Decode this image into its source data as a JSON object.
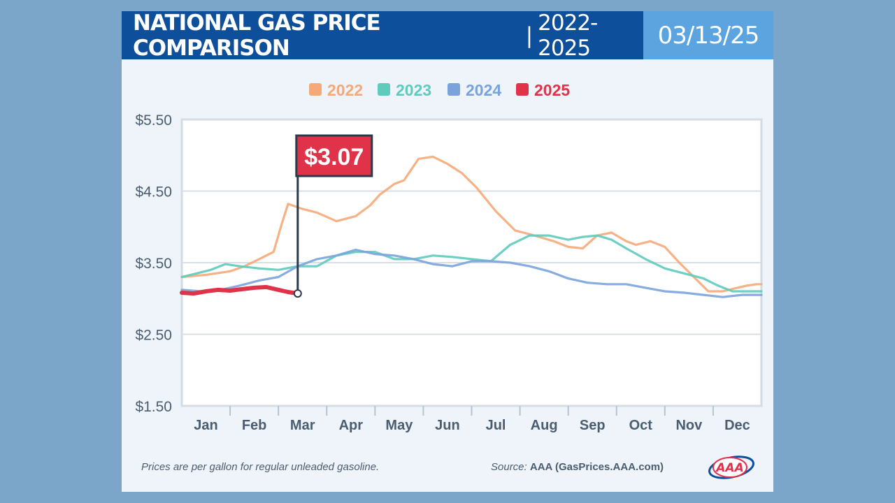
{
  "header": {
    "title": "NATIONAL GAS PRICE COMPARISON",
    "separator": "|",
    "years": "2022-2025",
    "date": "03/13/25"
  },
  "footer": {
    "note": "Prices are per gallon for regular unleaded gasoline.",
    "source_label": "Source:",
    "source_value": "AAA (GasPrices.AAA.com)",
    "logo_text": "AAA"
  },
  "colors": {
    "2022": "#f5a878",
    "2023": "#5ecbbd",
    "2024": "#7aa3dc",
    "2025": "#e0334a"
  },
  "chart_data": {
    "type": "line",
    "title": "NATIONAL GAS PRICE COMPARISON | 2022-2025",
    "xlabel": "",
    "ylabel": "",
    "ylim": [
      1.5,
      5.5
    ],
    "yticks": [
      "$5.50",
      "$4.50",
      "$3.50",
      "$2.50",
      "$1.50"
    ],
    "ytick_values": [
      5.5,
      4.5,
      3.5,
      2.5,
      1.5
    ],
    "xlim": [
      0,
      12
    ],
    "categories": [
      "Jan",
      "Feb",
      "Mar",
      "Apr",
      "May",
      "Jun",
      "Jul",
      "Aug",
      "Sep",
      "Oct",
      "Nov",
      "Dec"
    ],
    "legend_position": "top-center",
    "annotation": {
      "label": "$3.07",
      "series": "2025",
      "x": 2.4,
      "y": 3.07
    },
    "series": [
      {
        "name": "2022",
        "x": [
          0,
          0.5,
          1.0,
          1.3,
          1.6,
          1.9,
          2.05,
          2.2,
          2.5,
          2.8,
          3.2,
          3.6,
          3.9,
          4.1,
          4.4,
          4.6,
          4.9,
          5.2,
          5.5,
          5.8,
          6.1,
          6.5,
          6.9,
          7.3,
          7.7,
          8.0,
          8.3,
          8.6,
          8.9,
          9.2,
          9.4,
          9.7,
          10.0,
          10.3,
          10.6,
          10.9,
          11.2,
          11.5,
          11.7,
          11.9,
          12.0
        ],
        "values": [
          3.3,
          3.33,
          3.38,
          3.45,
          3.55,
          3.65,
          4.0,
          4.32,
          4.25,
          4.2,
          4.08,
          4.15,
          4.3,
          4.45,
          4.6,
          4.65,
          4.95,
          4.98,
          4.88,
          4.75,
          4.55,
          4.22,
          3.95,
          3.88,
          3.8,
          3.72,
          3.7,
          3.88,
          3.92,
          3.8,
          3.75,
          3.8,
          3.72,
          3.5,
          3.3,
          3.1,
          3.1,
          3.15,
          3.18,
          3.2,
          3.2
        ]
      },
      {
        "name": "2023",
        "x": [
          0,
          0.3,
          0.6,
          0.9,
          1.2,
          1.6,
          2.0,
          2.4,
          2.8,
          3.2,
          3.6,
          4.0,
          4.4,
          4.8,
          5.2,
          5.6,
          6.0,
          6.4,
          6.8,
          7.2,
          7.6,
          8.0,
          8.3,
          8.6,
          8.9,
          9.2,
          9.6,
          10.0,
          10.4,
          10.8,
          11.1,
          11.4,
          11.7,
          12.0
        ],
        "values": [
          3.3,
          3.35,
          3.4,
          3.48,
          3.45,
          3.42,
          3.4,
          3.45,
          3.45,
          3.6,
          3.65,
          3.65,
          3.55,
          3.55,
          3.6,
          3.58,
          3.55,
          3.52,
          3.75,
          3.88,
          3.88,
          3.82,
          3.86,
          3.88,
          3.82,
          3.7,
          3.55,
          3.42,
          3.35,
          3.28,
          3.18,
          3.1,
          3.1,
          3.1
        ]
      },
      {
        "name": "2024",
        "x": [
          0,
          0.4,
          0.8,
          1.2,
          1.6,
          2.0,
          2.4,
          2.8,
          3.2,
          3.6,
          4.0,
          4.4,
          4.8,
          5.2,
          5.6,
          6.0,
          6.4,
          6.8,
          7.2,
          7.6,
          8.0,
          8.4,
          8.8,
          9.2,
          9.6,
          10.0,
          10.4,
          10.8,
          11.2,
          11.6,
          12.0
        ],
        "values": [
          3.12,
          3.1,
          3.12,
          3.18,
          3.25,
          3.3,
          3.45,
          3.55,
          3.6,
          3.68,
          3.62,
          3.6,
          3.55,
          3.48,
          3.45,
          3.52,
          3.52,
          3.5,
          3.45,
          3.38,
          3.28,
          3.22,
          3.2,
          3.2,
          3.15,
          3.1,
          3.08,
          3.05,
          3.02,
          3.05,
          3.05
        ]
      },
      {
        "name": "2025",
        "x": [
          0,
          0.25,
          0.5,
          0.75,
          1.0,
          1.25,
          1.5,
          1.75,
          2.0,
          2.2,
          2.4
        ],
        "values": [
          3.08,
          3.07,
          3.1,
          3.12,
          3.11,
          3.13,
          3.15,
          3.16,
          3.12,
          3.09,
          3.07
        ]
      }
    ]
  }
}
